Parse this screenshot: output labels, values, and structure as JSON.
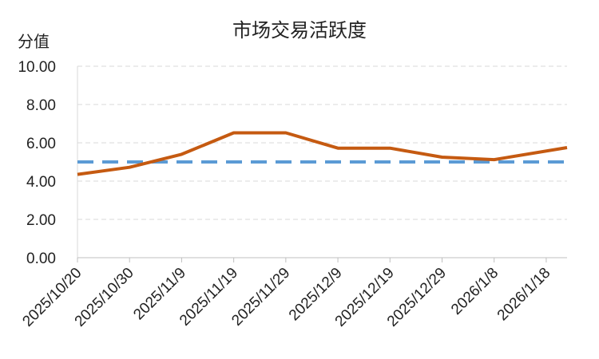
{
  "chart_data": {
    "type": "line",
    "title": "市场交易活跃度",
    "ylabel": "分值",
    "xlabel": "",
    "ylim": [
      0,
      10
    ],
    "y_ticks": [
      "0.00",
      "2.00",
      "4.00",
      "6.00",
      "8.00",
      "10.00"
    ],
    "x_tick_labels": [
      "2025/10/20",
      "2025/10/30",
      "2025/11/9",
      "2025/11/19",
      "2025/11/29",
      "2025/12/9",
      "2025/12/19",
      "2025/12/29",
      "2026/1/8",
      "2026/1/18"
    ],
    "x_start": "2025/10/20",
    "x_end": "2026/1/22",
    "grid": true,
    "series": [
      {
        "color": "#C55A11",
        "style": "solid",
        "points": [
          {
            "x": "2025/10/20",
            "y": 4.35
          },
          {
            "x": "2025/10/30",
            "y": 4.72
          },
          {
            "x": "2025/11/9",
            "y": 5.4
          },
          {
            "x": "2025/11/19",
            "y": 6.52
          },
          {
            "x": "2025/11/29",
            "y": 6.52
          },
          {
            "x": "2025/12/9",
            "y": 5.72
          },
          {
            "x": "2025/12/19",
            "y": 5.72
          },
          {
            "x": "2025/12/29",
            "y": 5.25
          },
          {
            "x": "2026/1/8",
            "y": 5.12
          },
          {
            "x": "2026/1/22",
            "y": 5.75
          }
        ]
      },
      {
        "color": "#5B9BD5",
        "style": "dashed",
        "points": [
          {
            "x": "2025/10/20",
            "y": 5.0
          },
          {
            "x": "2026/1/22",
            "y": 5.0
          }
        ]
      }
    ]
  }
}
